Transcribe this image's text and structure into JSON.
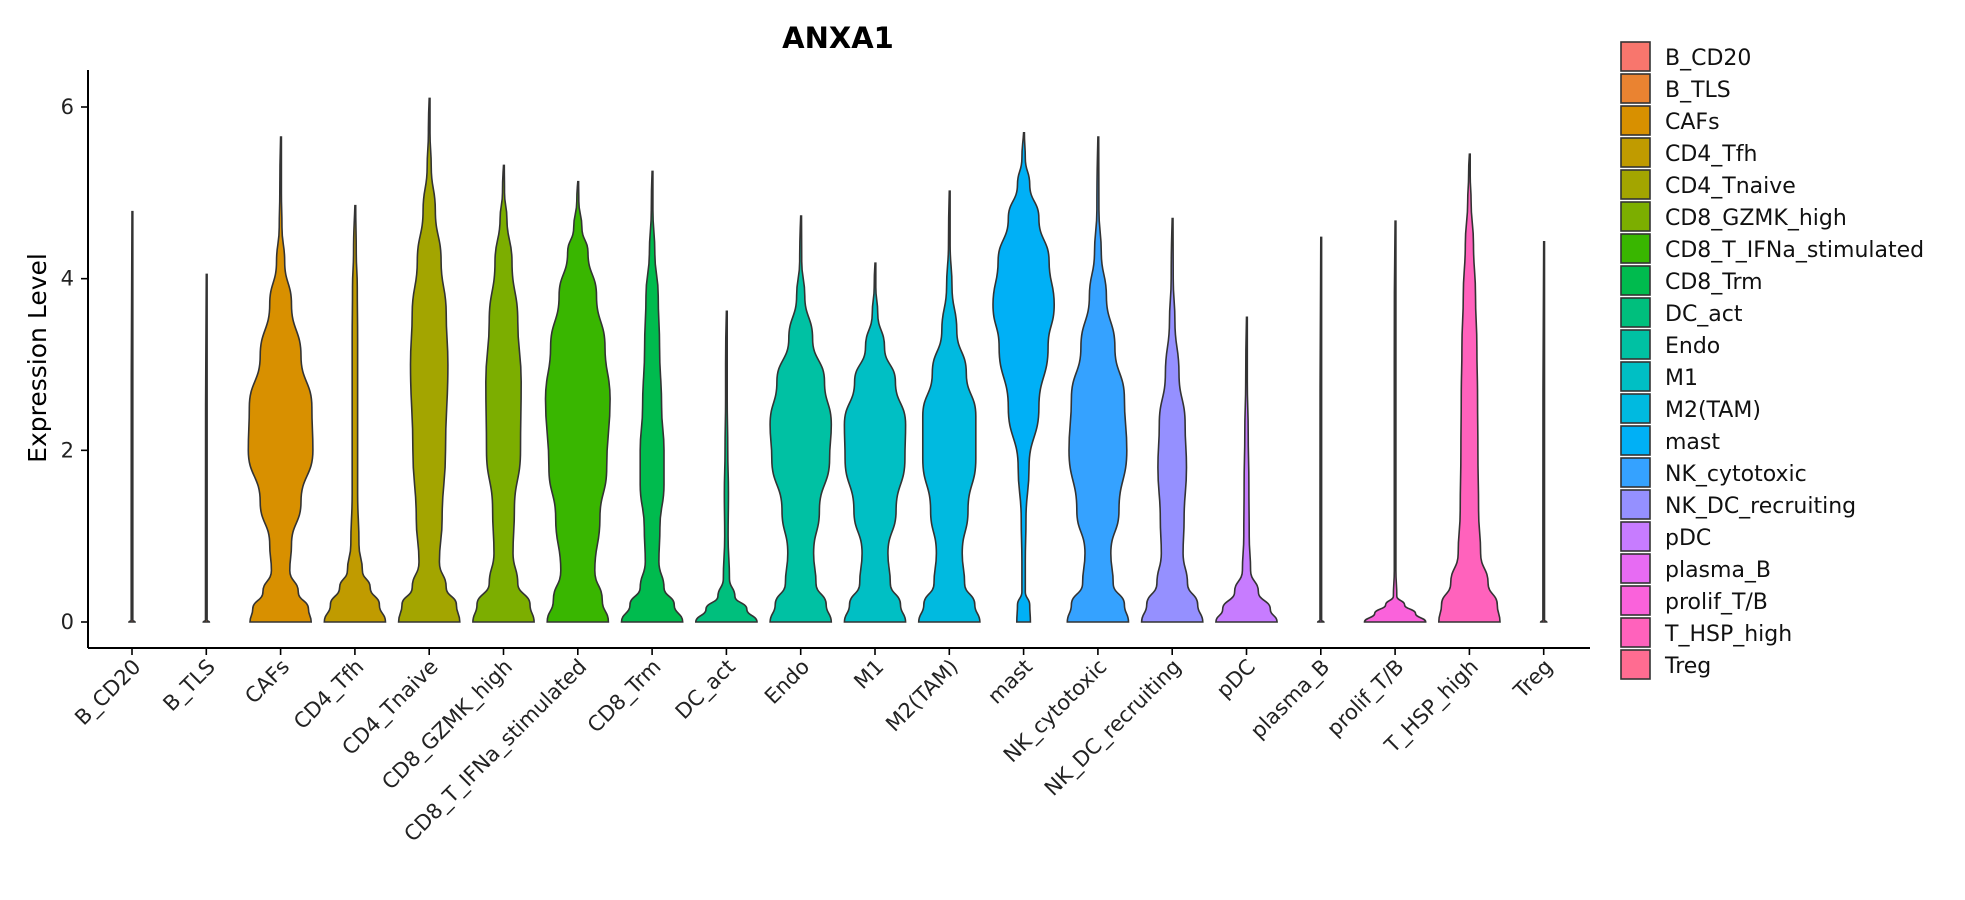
{
  "chart_data": {
    "type": "violin",
    "title": "ANXA1",
    "xlabel": "",
    "ylabel": "Expression Level",
    "ylim": [
      -0.3,
      6.4
    ],
    "yticks": [
      0,
      2,
      4,
      6
    ],
    "legend_position": "right",
    "grid": false,
    "categories": [
      "B_CD20",
      "B_TLS",
      "CAFs",
      "CD4_Tfh",
      "CD4_Tnaive",
      "CD8_GZMK_high",
      "CD8_T_IFNa_stimulated",
      "CD8_Trm",
      "DC_act",
      "Endo",
      "M1",
      "M2(TAM)",
      "mast",
      "NK_cytotoxic",
      "NK_DC_recruiting",
      "pDC",
      "plasma_B",
      "prolif_T/B",
      "T_HSP_high",
      "Treg"
    ],
    "colors": [
      "#F8766D",
      "#EA8331",
      "#D89000",
      "#C09B00",
      "#A3A500",
      "#7CAE00",
      "#39B600",
      "#00BB4E",
      "#00BF7D",
      "#00C1A3",
      "#00BFC4",
      "#00BAE0",
      "#00B0F6",
      "#35A2FF",
      "#9590FF",
      "#C77CFF",
      "#E76BF3",
      "#FA62DB",
      "#FF62BC",
      "#FF6C91"
    ],
    "violins": [
      {
        "max": 4.78,
        "profile": [
          [
            0,
            0.09
          ],
          [
            0.02,
            0.02
          ],
          [
            0.05,
            0.008
          ],
          [
            0.2,
            0.006
          ],
          [
            1,
            0.005
          ],
          [
            4.78,
            0.004
          ]
        ]
      },
      {
        "max": 4.05,
        "profile": [
          [
            0,
            0.09
          ],
          [
            0.02,
            0.02
          ],
          [
            0.05,
            0.008
          ],
          [
            0.2,
            0.006
          ],
          [
            1,
            0.005
          ],
          [
            4.05,
            0.004
          ]
        ]
      },
      {
        "max": 5.65,
        "profile": [
          [
            0,
            0.9
          ],
          [
            0.15,
            0.82
          ],
          [
            0.35,
            0.52
          ],
          [
            0.6,
            0.27
          ],
          [
            0.9,
            0.32
          ],
          [
            1.4,
            0.6
          ],
          [
            2,
            0.95
          ],
          [
            2.5,
            0.92
          ],
          [
            3.1,
            0.6
          ],
          [
            3.7,
            0.32
          ],
          [
            4.2,
            0.12
          ],
          [
            4.6,
            0.04
          ],
          [
            5.0,
            0.02
          ],
          [
            5.65,
            0.01
          ]
        ]
      },
      {
        "max": 4.85,
        "profile": [
          [
            0,
            0.9
          ],
          [
            0.2,
            0.72
          ],
          [
            0.4,
            0.45
          ],
          [
            0.6,
            0.22
          ],
          [
            0.9,
            0.12
          ],
          [
            1.5,
            0.08
          ],
          [
            2.5,
            0.08
          ],
          [
            3.3,
            0.08
          ],
          [
            3.9,
            0.07
          ],
          [
            4.3,
            0.04
          ],
          [
            4.85,
            0.01
          ]
        ]
      },
      {
        "max": 6.1,
        "profile": [
          [
            0,
            0.9
          ],
          [
            0.2,
            0.8
          ],
          [
            0.4,
            0.5
          ],
          [
            0.7,
            0.3
          ],
          [
            1.2,
            0.38
          ],
          [
            2,
            0.48
          ],
          [
            3,
            0.55
          ],
          [
            3.6,
            0.5
          ],
          [
            4.2,
            0.35
          ],
          [
            4.8,
            0.18
          ],
          [
            5.3,
            0.06
          ],
          [
            5.7,
            0.02
          ],
          [
            6.1,
            0.01
          ]
        ]
      },
      {
        "max": 5.32,
        "profile": [
          [
            0,
            0.9
          ],
          [
            0.2,
            0.78
          ],
          [
            0.45,
            0.42
          ],
          [
            0.8,
            0.28
          ],
          [
            1.3,
            0.32
          ],
          [
            2,
            0.5
          ],
          [
            2.8,
            0.52
          ],
          [
            3.5,
            0.42
          ],
          [
            4.2,
            0.25
          ],
          [
            4.7,
            0.1
          ],
          [
            5.0,
            0.03
          ],
          [
            5.32,
            0.01
          ]
        ]
      },
      {
        "max": 5.13,
        "profile": [
          [
            0,
            0.9
          ],
          [
            0.25,
            0.72
          ],
          [
            0.6,
            0.5
          ],
          [
            1.2,
            0.65
          ],
          [
            1.8,
            0.85
          ],
          [
            2.6,
            0.95
          ],
          [
            3.2,
            0.8
          ],
          [
            3.8,
            0.55
          ],
          [
            4.3,
            0.3
          ],
          [
            4.6,
            0.12
          ],
          [
            4.9,
            0.03
          ],
          [
            5.13,
            0.01
          ]
        ]
      },
      {
        "max": 5.25,
        "profile": [
          [
            0,
            0.9
          ],
          [
            0.2,
            0.65
          ],
          [
            0.4,
            0.35
          ],
          [
            0.7,
            0.2
          ],
          [
            1.1,
            0.23
          ],
          [
            1.6,
            0.35
          ],
          [
            2,
            0.35
          ],
          [
            2.5,
            0.28
          ],
          [
            3.2,
            0.22
          ],
          [
            3.8,
            0.18
          ],
          [
            4.3,
            0.08
          ],
          [
            4.8,
            0.02
          ],
          [
            5.25,
            0.01
          ]
        ]
      },
      {
        "max": 3.62,
        "profile": [
          [
            0,
            0.9
          ],
          [
            0.15,
            0.6
          ],
          [
            0.3,
            0.25
          ],
          [
            0.5,
            0.09
          ],
          [
            1,
            0.05
          ],
          [
            1.5,
            0.06
          ],
          [
            2,
            0.04
          ],
          [
            2.6,
            0.02
          ],
          [
            3,
            0.01
          ],
          [
            3.62,
            0.005
          ]
        ]
      },
      {
        "max": 4.73,
        "profile": [
          [
            0,
            0.9
          ],
          [
            0.2,
            0.75
          ],
          [
            0.45,
            0.45
          ],
          [
            0.8,
            0.38
          ],
          [
            1.3,
            0.55
          ],
          [
            1.9,
            0.85
          ],
          [
            2.3,
            0.9
          ],
          [
            2.8,
            0.7
          ],
          [
            3.3,
            0.35
          ],
          [
            3.8,
            0.12
          ],
          [
            4.2,
            0.03
          ],
          [
            4.73,
            0.005
          ]
        ]
      },
      {
        "max": 4.18,
        "profile": [
          [
            0,
            0.9
          ],
          [
            0.2,
            0.75
          ],
          [
            0.45,
            0.45
          ],
          [
            0.8,
            0.38
          ],
          [
            1.3,
            0.62
          ],
          [
            1.9,
            0.88
          ],
          [
            2.3,
            0.9
          ],
          [
            2.8,
            0.6
          ],
          [
            3.2,
            0.28
          ],
          [
            3.6,
            0.08
          ],
          [
            3.9,
            0.02
          ],
          [
            4.18,
            0.005
          ]
        ]
      },
      {
        "max": 5.02,
        "profile": [
          [
            0,
            0.9
          ],
          [
            0.2,
            0.75
          ],
          [
            0.45,
            0.45
          ],
          [
            0.8,
            0.38
          ],
          [
            1.3,
            0.55
          ],
          [
            1.9,
            0.78
          ],
          [
            2.4,
            0.78
          ],
          [
            2.9,
            0.5
          ],
          [
            3.4,
            0.22
          ],
          [
            3.9,
            0.08
          ],
          [
            4.4,
            0.02
          ],
          [
            5.02,
            0.005
          ]
        ]
      },
      {
        "max": 5.7,
        "profile": [
          [
            0,
            0.2
          ],
          [
            0.2,
            0.18
          ],
          [
            0.35,
            0.05
          ],
          [
            0.7,
            0.05
          ],
          [
            1.2,
            0.07
          ],
          [
            1.8,
            0.16
          ],
          [
            2.5,
            0.45
          ],
          [
            3.2,
            0.72
          ],
          [
            3.7,
            0.9
          ],
          [
            4.2,
            0.75
          ],
          [
            4.7,
            0.45
          ],
          [
            5.1,
            0.18
          ],
          [
            5.4,
            0.05
          ],
          [
            5.7,
            0.01
          ]
        ]
      },
      {
        "max": 5.65,
        "profile": [
          [
            0,
            0.9
          ],
          [
            0.2,
            0.78
          ],
          [
            0.45,
            0.45
          ],
          [
            0.8,
            0.38
          ],
          [
            1.3,
            0.62
          ],
          [
            2,
            0.85
          ],
          [
            2.6,
            0.78
          ],
          [
            3.2,
            0.5
          ],
          [
            3.8,
            0.25
          ],
          [
            4.3,
            0.1
          ],
          [
            4.8,
            0.03
          ],
          [
            5.65,
            0.005
          ]
        ]
      },
      {
        "max": 4.7,
        "profile": [
          [
            0,
            0.9
          ],
          [
            0.2,
            0.75
          ],
          [
            0.45,
            0.45
          ],
          [
            0.8,
            0.32
          ],
          [
            1.2,
            0.35
          ],
          [
            1.8,
            0.42
          ],
          [
            2.3,
            0.38
          ],
          [
            2.9,
            0.2
          ],
          [
            3.5,
            0.08
          ],
          [
            4.0,
            0.03
          ],
          [
            4.7,
            0.005
          ]
        ]
      },
      {
        "max": 3.55,
        "profile": [
          [
            0,
            0.9
          ],
          [
            0.15,
            0.7
          ],
          [
            0.35,
            0.35
          ],
          [
            0.6,
            0.12
          ],
          [
            1,
            0.08
          ],
          [
            1.6,
            0.07
          ],
          [
            2.2,
            0.05
          ],
          [
            2.8,
            0.02
          ],
          [
            3.55,
            0.005
          ]
        ]
      },
      {
        "max": 4.48,
        "profile": [
          [
            0,
            0.09
          ],
          [
            0.02,
            0.02
          ],
          [
            0.05,
            0.008
          ],
          [
            0.2,
            0.006
          ],
          [
            1,
            0.005
          ],
          [
            4.48,
            0.004
          ]
        ]
      },
      {
        "max": 4.67,
        "profile": [
          [
            0,
            0.9
          ],
          [
            0.1,
            0.6
          ],
          [
            0.2,
            0.28
          ],
          [
            0.3,
            0.05
          ],
          [
            0.6,
            0.01
          ],
          [
            1,
            0.008
          ],
          [
            2,
            0.008
          ],
          [
            3,
            0.006
          ],
          [
            4.67,
            0.004
          ]
        ]
      },
      {
        "max": 5.45,
        "profile": [
          [
            0,
            0.9
          ],
          [
            0.2,
            0.82
          ],
          [
            0.45,
            0.55
          ],
          [
            0.8,
            0.33
          ],
          [
            1.3,
            0.27
          ],
          [
            2,
            0.25
          ],
          [
            2.6,
            0.24
          ],
          [
            3.2,
            0.22
          ],
          [
            3.8,
            0.18
          ],
          [
            4.4,
            0.12
          ],
          [
            4.9,
            0.05
          ],
          [
            5.2,
            0.02
          ],
          [
            5.45,
            0.01
          ]
        ]
      },
      {
        "max": 4.43,
        "profile": [
          [
            0,
            0.09
          ],
          [
            0.02,
            0.02
          ],
          [
            0.05,
            0.008
          ],
          [
            0.2,
            0.006
          ],
          [
            1,
            0.005
          ],
          [
            4.43,
            0.004
          ]
        ]
      }
    ]
  }
}
